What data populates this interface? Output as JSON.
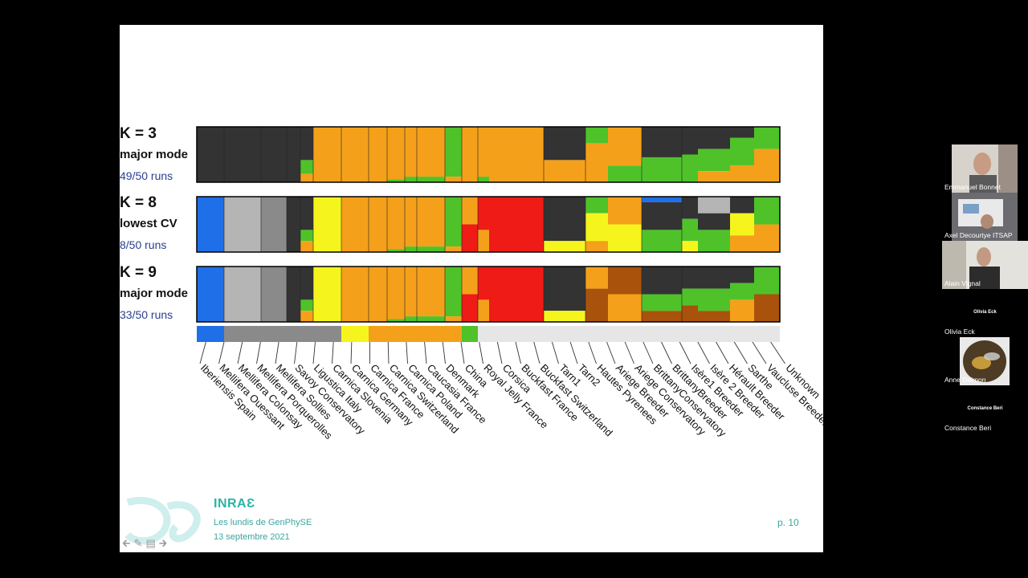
{
  "slide": {
    "rows": [
      {
        "k": "K = 3",
        "mode": "major mode",
        "runs": "49/50 runs"
      },
      {
        "k": "K = 8",
        "mode": "lowest CV",
        "runs": "8/50 runs"
      },
      {
        "k": "K = 9",
        "mode": "major mode",
        "runs": "33/50 runs"
      }
    ],
    "populations": [
      "Iberiensis Spain",
      "Mellifera Ouessant",
      "Mellifera Colonsay",
      "Mellifera Porquerolles",
      "Mellifera Sollies",
      "Savoy Conservatory",
      "Ligustica Italy",
      "Carnica Slovenia",
      "Carnica Germany",
      "Carnica France",
      "Carnica Switzerland",
      "Carnica Poland",
      "Caucasia France",
      "Denmark",
      "China",
      "Royal Jelly France",
      "Corsica",
      "Buckfast France",
      "Buckfast Switzerland",
      "Tarn1",
      "Tarn2",
      "Hautes Pyrenees",
      "Ariege Breeder",
      "Ariege Conservatory",
      "BrittanyConservatory",
      "BrittanyBreeder",
      "Isère1 Breeder",
      "Isère 2 Breeder",
      "Hérault Breeder",
      "Sarthe",
      "Vaucluse Breeder",
      "Unknown"
    ],
    "colors": {
      "dark": "#333333",
      "orange": "#f5a01a",
      "green": "#4fc22a",
      "blue": "#1f6fe8",
      "lightgray": "#b5b5b5",
      "midgray": "#8a8a8a",
      "yellow": "#f5f51d",
      "red": "#ee1b16",
      "brown": "#a8520c"
    },
    "footer": {
      "logo": "INRAƐ",
      "series": "Les lundis de GenPhySE",
      "date": "13 septembre 2021",
      "page": "p. 10"
    }
  },
  "participants": [
    {
      "name": "Emmanuel Bonnet",
      "video": true
    },
    {
      "name": "Axel Decourtye ITSAP",
      "video": true
    },
    {
      "name": "Alain Vignal",
      "video": true
    },
    {
      "name": "Olivia Eck",
      "video": false,
      "center_name": "Olivia Eck"
    },
    {
      "name": "Anne Dalmon",
      "video": true,
      "image": "bee-icon"
    },
    {
      "name": "Constance Beri",
      "video": false,
      "center_name": "Constance Beri"
    }
  ],
  "nav_icons": [
    "arrow-left-icon",
    "pen-icon",
    "slides-icon",
    "arrow-right-icon"
  ]
}
